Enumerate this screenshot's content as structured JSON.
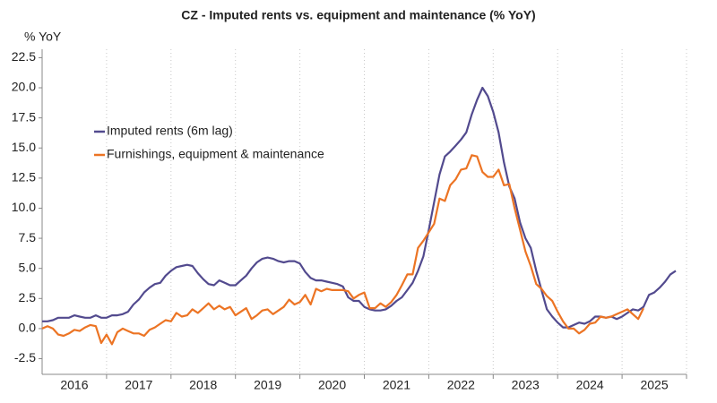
{
  "chart_data": {
    "type": "line",
    "title": "CZ - Imputed rents vs. equipment and maintenance (% YoY)",
    "y_label": "% YoY",
    "x": [
      2016,
      2016.083,
      2016.167,
      2016.25,
      2016.333,
      2016.417,
      2016.5,
      2016.583,
      2016.667,
      2016.75,
      2016.833,
      2016.917,
      2017,
      2017.083,
      2017.167,
      2017.25,
      2017.333,
      2017.417,
      2017.5,
      2017.583,
      2017.667,
      2017.75,
      2017.833,
      2017.917,
      2018,
      2018.083,
      2018.167,
      2018.25,
      2018.333,
      2018.417,
      2018.5,
      2018.583,
      2018.667,
      2018.75,
      2018.833,
      2018.917,
      2019,
      2019.083,
      2019.167,
      2019.25,
      2019.333,
      2019.417,
      2019.5,
      2019.583,
      2019.667,
      2019.75,
      2019.833,
      2019.917,
      2020,
      2020.083,
      2020.167,
      2020.25,
      2020.333,
      2020.417,
      2020.5,
      2020.583,
      2020.667,
      2020.75,
      2020.833,
      2020.917,
      2021,
      2021.083,
      2021.167,
      2021.25,
      2021.333,
      2021.417,
      2021.5,
      2021.583,
      2021.667,
      2021.75,
      2021.833,
      2021.917,
      2022,
      2022.083,
      2022.167,
      2022.25,
      2022.333,
      2022.417,
      2022.5,
      2022.583,
      2022.667,
      2022.75,
      2022.833,
      2022.917,
      2023,
      2023.083,
      2023.167,
      2023.25,
      2023.333,
      2023.417,
      2023.5,
      2023.583,
      2023.667,
      2023.75,
      2023.833,
      2023.917,
      2024,
      2024.083,
      2024.167,
      2024.25,
      2024.333,
      2024.417,
      2024.5,
      2024.583,
      2024.667,
      2024.75,
      2024.833,
      2024.917,
      2025,
      2025.083,
      2025.167,
      2025.25,
      2025.333,
      2025.417,
      2025.5,
      2025.583,
      2025.667,
      2025.75,
      2025.833
    ],
    "series": [
      {
        "name": "Imputed rents (6m lag)",
        "color": "#524a8e",
        "values": [
          0.6,
          0.6,
          0.7,
          0.9,
          0.9,
          0.9,
          1.1,
          1.0,
          0.9,
          0.9,
          1.1,
          0.9,
          0.9,
          1.1,
          1.1,
          1.2,
          1.4,
          2.0,
          2.4,
          3.0,
          3.4,
          3.7,
          3.8,
          4.4,
          4.8,
          5.1,
          5.2,
          5.3,
          5.2,
          4.6,
          4.1,
          3.7,
          3.6,
          4.0,
          3.8,
          3.6,
          3.6,
          4.0,
          4.4,
          5.0,
          5.5,
          5.8,
          5.9,
          5.8,
          5.6,
          5.5,
          5.6,
          5.6,
          5.4,
          4.7,
          4.2,
          4.0,
          4.0,
          3.9,
          3.8,
          3.7,
          3.5,
          2.6,
          2.3,
          2.3,
          1.8,
          1.6,
          1.5,
          1.5,
          1.6,
          1.9,
          2.3,
          2.6,
          3.2,
          3.8,
          4.8,
          6.0,
          8.2,
          10.5,
          12.8,
          14.3,
          14.7,
          15.2,
          15.7,
          16.3,
          17.8,
          19.0,
          20.0,
          19.3,
          18.0,
          16.3,
          13.8,
          11.8,
          10.8,
          8.8,
          7.5,
          6.7,
          4.8,
          3.2,
          1.6,
          1.0,
          0.5,
          0.1,
          0.1,
          0.3,
          0.5,
          0.4,
          0.6,
          1.0,
          1.0,
          0.9,
          1.0,
          0.8,
          1.0,
          1.3,
          1.6,
          1.5,
          1.8,
          2.8,
          3.0,
          3.4,
          3.9,
          4.5,
          4.8
        ]
      },
      {
        "name": "Furnishings, equipment & maintenance",
        "color": "#ec7424",
        "values": [
          0.0,
          0.2,
          0.0,
          -0.5,
          -0.6,
          -0.4,
          -0.1,
          -0.2,
          0.1,
          0.3,
          0.2,
          -1.2,
          -0.5,
          -1.3,
          -0.3,
          0.0,
          -0.2,
          -0.4,
          -0.4,
          -0.6,
          -0.1,
          0.1,
          0.4,
          0.7,
          0.6,
          1.3,
          1.0,
          1.1,
          1.6,
          1.3,
          1.7,
          2.1,
          1.6,
          1.9,
          1.6,
          1.8,
          1.1,
          1.4,
          1.7,
          0.8,
          1.1,
          1.5,
          1.6,
          1.2,
          1.5,
          1.8,
          2.4,
          2.0,
          2.2,
          2.8,
          2.0,
          3.3,
          3.1,
          3.3,
          3.2,
          3.2,
          3.2,
          3.1,
          2.5,
          2.8,
          3.0,
          1.7,
          1.7,
          2.1,
          1.8,
          2.2,
          2.8,
          3.6,
          4.5,
          4.5,
          6.7,
          7.3,
          8.0,
          8.7,
          10.8,
          10.6,
          11.9,
          12.4,
          13.2,
          13.3,
          14.4,
          14.3,
          13.0,
          12.6,
          12.6,
          13.2,
          11.9,
          12.0,
          10.0,
          8.2,
          6.4,
          5.2,
          3.7,
          3.3,
          2.7,
          2.3,
          1.4,
          0.6,
          0.0,
          0.0,
          -0.4,
          -0.1,
          0.4,
          0.5,
          1.0,
          0.9,
          1.0,
          1.2,
          1.4,
          1.6,
          1.2,
          0.8,
          1.7,
          null,
          null,
          null,
          null,
          null,
          null
        ]
      }
    ],
    "xlim": [
      2016,
      2026
    ],
    "xticks": [
      {
        "value": 2016.5,
        "label": "2016"
      },
      {
        "value": 2017.5,
        "label": "2017"
      },
      {
        "value": 2018.5,
        "label": "2018"
      },
      {
        "value": 2019.5,
        "label": "2019"
      },
      {
        "value": 2020.5,
        "label": "2020"
      },
      {
        "value": 2021.5,
        "label": "2021"
      },
      {
        "value": 2022.5,
        "label": "2022"
      },
      {
        "value": 2023.5,
        "label": "2023"
      },
      {
        "value": 2024.5,
        "label": "2024"
      },
      {
        "value": 2025.5,
        "label": "2025"
      }
    ],
    "ylim": [
      -3.8,
      23.2
    ],
    "yticks": [
      {
        "value": -2.5,
        "label": "-2.5"
      },
      {
        "value": 0,
        "label": "0.0"
      },
      {
        "value": 2.5,
        "label": "2.5"
      },
      {
        "value": 5,
        "label": "5.0"
      },
      {
        "value": 7.5,
        "label": "7.5"
      },
      {
        "value": 10,
        "label": "10.0"
      },
      {
        "value": 12.5,
        "label": "12.5"
      },
      {
        "value": 15,
        "label": "15.0"
      },
      {
        "value": 17.5,
        "label": "17.5"
      },
      {
        "value": 20,
        "label": "20.0"
      },
      {
        "value": 22.5,
        "label": "22.5"
      }
    ],
    "legend": "upper left"
  }
}
